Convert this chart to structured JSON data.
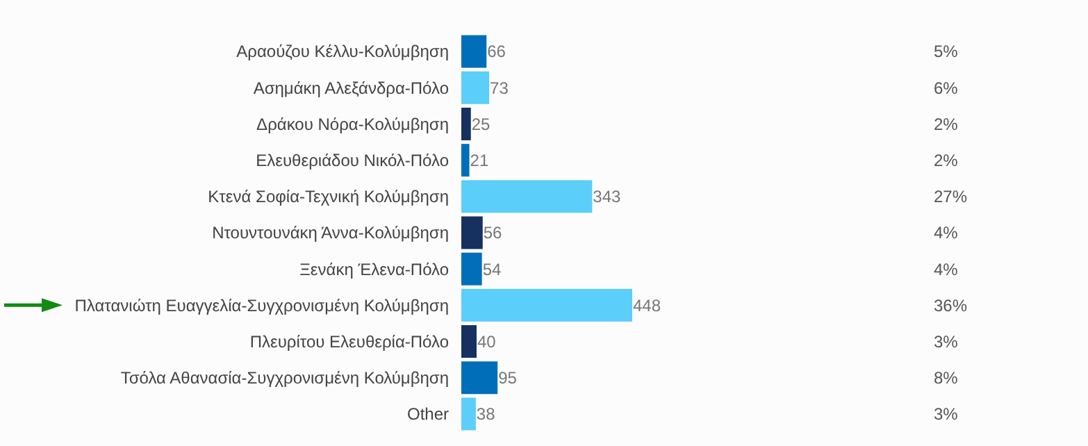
{
  "chart_data": {
    "type": "bar",
    "orientation": "horizontal",
    "data_labels": true,
    "categories": [
      "Αραούζου Κέλλυ-Κολύμβηση",
      "Ασημάκη Αλεξάνδρα-Πόλο",
      "Δράκου Νόρα-Κολύμβηση",
      "Ελευθεριάδου Νικόλ-Πόλο",
      "Κτενά Σοφία-Τεχνική Κολύμβηση",
      "Ντουντουνάκη Άννα-Κολύμβηση",
      "Ξενάκη Έλενα-Πόλο",
      "Πλατανιώτη Ευαγγελία-Συγχρονισμένη Κολύμβηση",
      "Πλευρίτου Ελευθερία-Πόλο",
      "Τσόλα Αθανασία-Συγχρονισμένη Κολύμβηση",
      "Other"
    ],
    "values": [
      66,
      73,
      25,
      21,
      343,
      56,
      54,
      448,
      40,
      95,
      38
    ],
    "colors": [
      "#006eb8",
      "#5bcefa",
      "#16315f",
      "#006eb8",
      "#5bcefa",
      "#16315f",
      "#006eb8",
      "#5bcefa",
      "#16315f",
      "#006eb8",
      "#5bcefa"
    ],
    "annotations": [
      "5%",
      "6%",
      "2%",
      "2%",
      "27%",
      "4%",
      "4%",
      "36%",
      "3%",
      "8%",
      "3%"
    ]
  }
}
